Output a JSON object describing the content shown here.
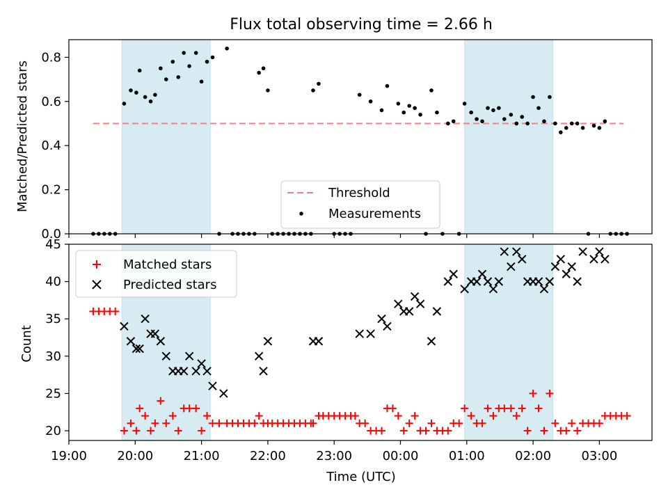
{
  "chart_data": {
    "title": "Flux total observing time = 2.66 h",
    "xlabel": "Time (UTC)",
    "x_ticks": [
      "19:00",
      "20:00",
      "21:00",
      "22:00",
      "23:00",
      "00:00",
      "01:00",
      "02:00",
      "03:00"
    ],
    "highlight_bands": [
      {
        "start": "19:48",
        "end": "21:08",
        "color": "#add8e6"
      },
      {
        "start": "00:58",
        "end": "02:18",
        "color": "#add8e6"
      }
    ],
    "top": {
      "type": "scatter",
      "ylabel": "Matched/Predicted stars",
      "ylim": [
        0,
        0.88
      ],
      "y_ticks": [
        "0.0",
        "0.2",
        "0.4",
        "0.6",
        "0.8"
      ],
      "legend": {
        "position": "lower-center",
        "threshold_label": "Threshold",
        "measurements_label": "Measurements"
      },
      "threshold": {
        "value": 0.5,
        "start": "19:22",
        "end": "03:22",
        "color": "#f08080"
      },
      "measurements": [
        {
          "t": "19:22",
          "v": 0
        },
        {
          "t": "19:27",
          "v": 0
        },
        {
          "t": "19:32",
          "v": 0
        },
        {
          "t": "19:37",
          "v": 0
        },
        {
          "t": "19:42",
          "v": 0
        },
        {
          "t": "19:50",
          "v": 0.59
        },
        {
          "t": "19:56",
          "v": 0.65
        },
        {
          "t": "20:01",
          "v": 0.64
        },
        {
          "t": "20:04",
          "v": 0.74
        },
        {
          "t": "20:09",
          "v": 0.62
        },
        {
          "t": "20:14",
          "v": 0.6
        },
        {
          "t": "20:18",
          "v": 0.63
        },
        {
          "t": "20:23",
          "v": 0.75
        },
        {
          "t": "20:28",
          "v": 0.7
        },
        {
          "t": "20:34",
          "v": 0.78
        },
        {
          "t": "20:39",
          "v": 0.71
        },
        {
          "t": "20:44",
          "v": 0.82
        },
        {
          "t": "20:49",
          "v": 0.76
        },
        {
          "t": "20:55",
          "v": 0.82
        },
        {
          "t": "21:00",
          "v": 0.69
        },
        {
          "t": "21:05",
          "v": 0.78
        },
        {
          "t": "21:10",
          "v": 0.8
        },
        {
          "t": "21:16",
          "v": 0
        },
        {
          "t": "21:23",
          "v": 0.84
        },
        {
          "t": "21:28",
          "v": 0
        },
        {
          "t": "21:33",
          "v": 0
        },
        {
          "t": "21:38",
          "v": 0
        },
        {
          "t": "21:43",
          "v": 0
        },
        {
          "t": "21:48",
          "v": 0
        },
        {
          "t": "21:52",
          "v": 0.73
        },
        {
          "t": "21:56",
          "v": 0.75
        },
        {
          "t": "22:00",
          "v": 0.65
        },
        {
          "t": "22:04",
          "v": 0
        },
        {
          "t": "22:09",
          "v": 0
        },
        {
          "t": "22:14",
          "v": 0
        },
        {
          "t": "22:19",
          "v": 0
        },
        {
          "t": "22:24",
          "v": 0
        },
        {
          "t": "22:29",
          "v": 0
        },
        {
          "t": "22:34",
          "v": 0
        },
        {
          "t": "22:39",
          "v": 0
        },
        {
          "t": "22:41",
          "v": 0.65
        },
        {
          "t": "22:46",
          "v": 0.68
        },
        {
          "t": "23:00",
          "v": 0
        },
        {
          "t": "23:05",
          "v": 0
        },
        {
          "t": "23:10",
          "v": 0
        },
        {
          "t": "23:15",
          "v": 0
        },
        {
          "t": "23:23",
          "v": 0.63
        },
        {
          "t": "23:33",
          "v": 0.6
        },
        {
          "t": "23:43",
          "v": 0.56
        },
        {
          "t": "23:48",
          "v": 0.67
        },
        {
          "t": "23:58",
          "v": 0.59
        },
        {
          "t": "00:03",
          "v": 0.55
        },
        {
          "t": "00:08",
          "v": 0.58
        },
        {
          "t": "00:13",
          "v": 0.57
        },
        {
          "t": "00:18",
          "v": 0.54
        },
        {
          "t": "00:23",
          "v": 0
        },
        {
          "t": "00:28",
          "v": 0.65
        },
        {
          "t": "00:33",
          "v": 0.55
        },
        {
          "t": "00:38",
          "v": 0
        },
        {
          "t": "00:43",
          "v": 0.5
        },
        {
          "t": "00:48",
          "v": 0.51
        },
        {
          "t": "00:53",
          "v": 0
        },
        {
          "t": "00:58",
          "v": 0.59
        },
        {
          "t": "01:04",
          "v": 0.55
        },
        {
          "t": "01:09",
          "v": 0.52
        },
        {
          "t": "01:14",
          "v": 0.51
        },
        {
          "t": "01:19",
          "v": 0.57
        },
        {
          "t": "01:24",
          "v": 0.56
        },
        {
          "t": "01:29",
          "v": 0.57
        },
        {
          "t": "01:34",
          "v": 0.52
        },
        {
          "t": "01:40",
          "v": 0.54
        },
        {
          "t": "01:45",
          "v": 0.5
        },
        {
          "t": "01:50",
          "v": 0.53
        },
        {
          "t": "01:55",
          "v": 0.5
        },
        {
          "t": "02:00",
          "v": 0.62
        },
        {
          "t": "02:05",
          "v": 0.57
        },
        {
          "t": "02:10",
          "v": 0.51
        },
        {
          "t": "02:15",
          "v": 0.62
        },
        {
          "t": "02:20",
          "v": 0.5
        },
        {
          "t": "02:25",
          "v": 0.46
        },
        {
          "t": "02:30",
          "v": 0.48
        },
        {
          "t": "02:35",
          "v": 0.5
        },
        {
          "t": "02:40",
          "v": 0.5
        },
        {
          "t": "02:45",
          "v": 0.48
        },
        {
          "t": "02:50",
          "v": 0
        },
        {
          "t": "02:55",
          "v": 0.49
        },
        {
          "t": "03:00",
          "v": 0.48
        },
        {
          "t": "03:05",
          "v": 0.51
        },
        {
          "t": "03:10",
          "v": 0
        },
        {
          "t": "03:15",
          "v": 0
        },
        {
          "t": "03:20",
          "v": 0
        },
        {
          "t": "03:25",
          "v": 0
        }
      ]
    },
    "bottom": {
      "type": "scatter",
      "ylabel": "Count",
      "ylim": [
        18.7,
        45
      ],
      "y_ticks": [
        "20",
        "25",
        "30",
        "35",
        "40",
        "45"
      ],
      "legend": {
        "position": "top-left",
        "matched_label": "Matched stars",
        "predicted_label": "Predicted stars"
      },
      "matched": [
        {
          "t": "19:22",
          "v": 36
        },
        {
          "t": "19:27",
          "v": 36
        },
        {
          "t": "19:32",
          "v": 36
        },
        {
          "t": "19:37",
          "v": 36
        },
        {
          "t": "19:42",
          "v": 36
        },
        {
          "t": "19:50",
          "v": 20
        },
        {
          "t": "19:56",
          "v": 21
        },
        {
          "t": "20:01",
          "v": 20
        },
        {
          "t": "20:04",
          "v": 23
        },
        {
          "t": "20:09",
          "v": 22
        },
        {
          "t": "20:14",
          "v": 20
        },
        {
          "t": "20:18",
          "v": 21
        },
        {
          "t": "20:23",
          "v": 24
        },
        {
          "t": "20:28",
          "v": 21
        },
        {
          "t": "20:34",
          "v": 22
        },
        {
          "t": "20:39",
          "v": 20
        },
        {
          "t": "20:44",
          "v": 23
        },
        {
          "t": "20:49",
          "v": 23
        },
        {
          "t": "20:55",
          "v": 23
        },
        {
          "t": "21:00",
          "v": 20
        },
        {
          "t": "21:05",
          "v": 22
        },
        {
          "t": "21:10",
          "v": 21
        },
        {
          "t": "21:16",
          "v": 21
        },
        {
          "t": "21:23",
          "v": 21
        },
        {
          "t": "21:28",
          "v": 21
        },
        {
          "t": "21:33",
          "v": 21
        },
        {
          "t": "21:38",
          "v": 21
        },
        {
          "t": "21:43",
          "v": 21
        },
        {
          "t": "21:48",
          "v": 21
        },
        {
          "t": "21:52",
          "v": 22
        },
        {
          "t": "21:56",
          "v": 21
        },
        {
          "t": "22:00",
          "v": 21
        },
        {
          "t": "22:04",
          "v": 21
        },
        {
          "t": "22:09",
          "v": 21
        },
        {
          "t": "22:14",
          "v": 21
        },
        {
          "t": "22:19",
          "v": 21
        },
        {
          "t": "22:24",
          "v": 21
        },
        {
          "t": "22:29",
          "v": 21
        },
        {
          "t": "22:34",
          "v": 21
        },
        {
          "t": "22:39",
          "v": 21
        },
        {
          "t": "22:41",
          "v": 21
        },
        {
          "t": "22:46",
          "v": 22
        },
        {
          "t": "22:50",
          "v": 22
        },
        {
          "t": "22:55",
          "v": 22
        },
        {
          "t": "23:00",
          "v": 22
        },
        {
          "t": "23:05",
          "v": 22
        },
        {
          "t": "23:10",
          "v": 22
        },
        {
          "t": "23:15",
          "v": 22
        },
        {
          "t": "23:19",
          "v": 22
        },
        {
          "t": "23:23",
          "v": 21
        },
        {
          "t": "23:28",
          "v": 21
        },
        {
          "t": "23:33",
          "v": 20
        },
        {
          "t": "23:38",
          "v": 20
        },
        {
          "t": "23:43",
          "v": 20
        },
        {
          "t": "23:48",
          "v": 23
        },
        {
          "t": "23:53",
          "v": 23
        },
        {
          "t": "23:58",
          "v": 22
        },
        {
          "t": "00:03",
          "v": 20
        },
        {
          "t": "00:08",
          "v": 21
        },
        {
          "t": "00:13",
          "v": 22
        },
        {
          "t": "00:18",
          "v": 20
        },
        {
          "t": "00:23",
          "v": 20
        },
        {
          "t": "00:28",
          "v": 21
        },
        {
          "t": "00:33",
          "v": 20
        },
        {
          "t": "00:38",
          "v": 20
        },
        {
          "t": "00:43",
          "v": 20
        },
        {
          "t": "00:48",
          "v": 21
        },
        {
          "t": "00:53",
          "v": 21
        },
        {
          "t": "00:58",
          "v": 23
        },
        {
          "t": "01:04",
          "v": 22
        },
        {
          "t": "01:09",
          "v": 21
        },
        {
          "t": "01:14",
          "v": 21
        },
        {
          "t": "01:19",
          "v": 23
        },
        {
          "t": "01:24",
          "v": 22
        },
        {
          "t": "01:29",
          "v": 23
        },
        {
          "t": "01:34",
          "v": 23
        },
        {
          "t": "01:40",
          "v": 23
        },
        {
          "t": "01:45",
          "v": 22
        },
        {
          "t": "01:50",
          "v": 23
        },
        {
          "t": "01:55",
          "v": 20
        },
        {
          "t": "02:00",
          "v": 25
        },
        {
          "t": "02:05",
          "v": 23
        },
        {
          "t": "02:10",
          "v": 20
        },
        {
          "t": "02:15",
          "v": 25
        },
        {
          "t": "02:20",
          "v": 21
        },
        {
          "t": "02:25",
          "v": 20
        },
        {
          "t": "02:30",
          "v": 20
        },
        {
          "t": "02:35",
          "v": 21
        },
        {
          "t": "02:40",
          "v": 20
        },
        {
          "t": "02:45",
          "v": 21
        },
        {
          "t": "02:50",
          "v": 21
        },
        {
          "t": "02:55",
          "v": 21
        },
        {
          "t": "03:00",
          "v": 21
        },
        {
          "t": "03:05",
          "v": 22
        },
        {
          "t": "03:10",
          "v": 22
        },
        {
          "t": "03:15",
          "v": 22
        },
        {
          "t": "03:20",
          "v": 22
        },
        {
          "t": "03:25",
          "v": 22
        }
      ],
      "predicted": [
        {
          "t": "19:50",
          "v": 34
        },
        {
          "t": "19:56",
          "v": 32
        },
        {
          "t": "20:01",
          "v": 31
        },
        {
          "t": "20:04",
          "v": 31
        },
        {
          "t": "20:09",
          "v": 35
        },
        {
          "t": "20:14",
          "v": 33
        },
        {
          "t": "20:18",
          "v": 33
        },
        {
          "t": "20:23",
          "v": 32
        },
        {
          "t": "20:28",
          "v": 30
        },
        {
          "t": "20:34",
          "v": 28
        },
        {
          "t": "20:39",
          "v": 28
        },
        {
          "t": "20:44",
          "v": 28
        },
        {
          "t": "20:49",
          "v": 30
        },
        {
          "t": "20:55",
          "v": 28
        },
        {
          "t": "21:00",
          "v": 29
        },
        {
          "t": "21:05",
          "v": 28
        },
        {
          "t": "21:10",
          "v": 26
        },
        {
          "t": "21:20",
          "v": 25
        },
        {
          "t": "21:52",
          "v": 30
        },
        {
          "t": "21:56",
          "v": 28
        },
        {
          "t": "22:00",
          "v": 32
        },
        {
          "t": "22:41",
          "v": 32
        },
        {
          "t": "22:46",
          "v": 32
        },
        {
          "t": "23:23",
          "v": 33
        },
        {
          "t": "23:33",
          "v": 33
        },
        {
          "t": "23:43",
          "v": 35
        },
        {
          "t": "23:48",
          "v": 34
        },
        {
          "t": "23:58",
          "v": 37
        },
        {
          "t": "00:03",
          "v": 36
        },
        {
          "t": "00:08",
          "v": 36
        },
        {
          "t": "00:13",
          "v": 38
        },
        {
          "t": "00:18",
          "v": 37
        },
        {
          "t": "00:28",
          "v": 32
        },
        {
          "t": "00:33",
          "v": 36
        },
        {
          "t": "00:43",
          "v": 40
        },
        {
          "t": "00:48",
          "v": 41
        },
        {
          "t": "00:58",
          "v": 39
        },
        {
          "t": "01:04",
          "v": 40
        },
        {
          "t": "01:09",
          "v": 40
        },
        {
          "t": "01:14",
          "v": 41
        },
        {
          "t": "01:19",
          "v": 40
        },
        {
          "t": "01:24",
          "v": 39
        },
        {
          "t": "01:29",
          "v": 40
        },
        {
          "t": "01:34",
          "v": 44
        },
        {
          "t": "01:40",
          "v": 42
        },
        {
          "t": "01:45",
          "v": 44
        },
        {
          "t": "01:50",
          "v": 43
        },
        {
          "t": "01:55",
          "v": 40
        },
        {
          "t": "02:00",
          "v": 40
        },
        {
          "t": "02:05",
          "v": 40
        },
        {
          "t": "02:10",
          "v": 39
        },
        {
          "t": "02:15",
          "v": 40
        },
        {
          "t": "02:20",
          "v": 42
        },
        {
          "t": "02:25",
          "v": 43
        },
        {
          "t": "02:30",
          "v": 41
        },
        {
          "t": "02:35",
          "v": 42
        },
        {
          "t": "02:40",
          "v": 40
        },
        {
          "t": "02:45",
          "v": 44
        },
        {
          "t": "02:55",
          "v": 43
        },
        {
          "t": "03:00",
          "v": 44
        },
        {
          "t": "03:05",
          "v": 43
        }
      ]
    },
    "colors": {
      "measurements": "#000000",
      "matched": "#ff0000",
      "predicted": "#000000",
      "threshold": "#f08080",
      "band": "#add8e6"
    }
  }
}
